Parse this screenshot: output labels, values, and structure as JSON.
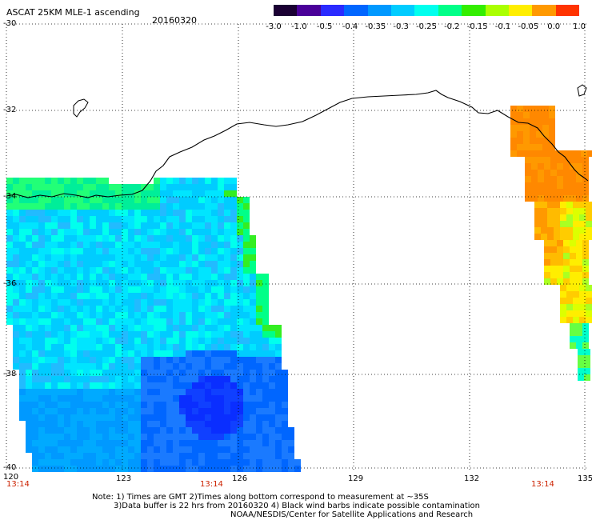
{
  "header": {
    "title": "ASCAT 25KM MLE-1 ascending",
    "date": "20160320"
  },
  "colorbar": {
    "labels": [
      "-3.0",
      "-1.0",
      "-0.5",
      "-0.4",
      "-0.35",
      "-0.3",
      "-0.25",
      "-0.2",
      "-0.15",
      "-0.1",
      "-0.05",
      "0.0",
      "1.0"
    ],
    "colors": [
      "#1a0033",
      "#4a0099",
      "#2a2aff",
      "#0066ff",
      "#0099ff",
      "#00ccff",
      "#00ffee",
      "#00ff88",
      "#33ee00",
      "#aaff00",
      "#ffee00",
      "#ff9900",
      "#ff3300"
    ]
  },
  "axes": {
    "lat_labels": [
      "-30",
      "-32",
      "-34",
      "-36",
      "-38",
      "-40"
    ],
    "lon_labels": [
      "120",
      "123",
      "126",
      "129",
      "132",
      "135"
    ]
  },
  "time_labels": [
    "13:14",
    "13:14",
    "13:14"
  ],
  "footer": {
    "line1": "Note: 1) Times are GMT 2)Times along bottom correspond to measurement at ~35S",
    "line2": "3)Data buffer is 22 hrs from 20160320 4) Black wind barbs indicate possible contamination",
    "line3": "NOAA/NESDIS/Center for Satellite Applications and Research"
  }
}
